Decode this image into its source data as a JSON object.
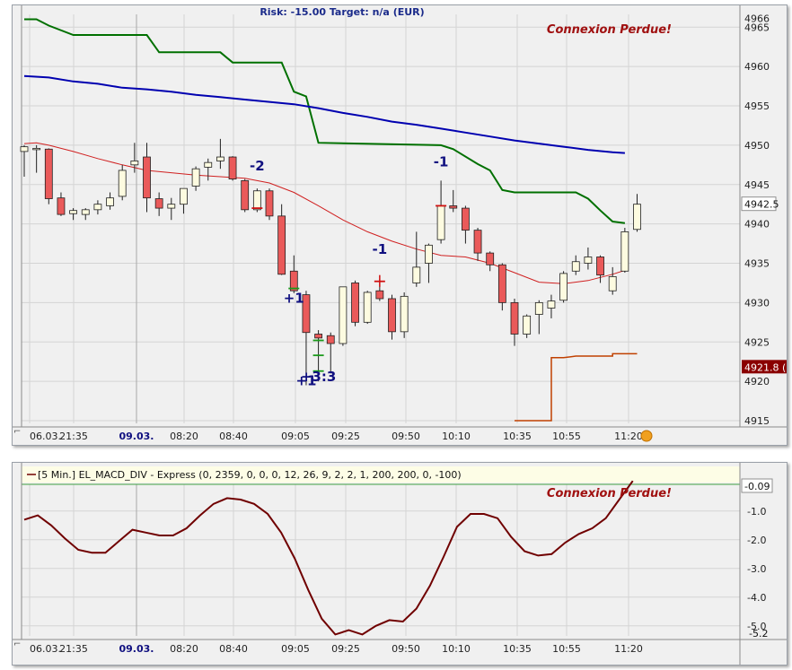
{
  "header": {
    "risk_text": "Risk: -15.00  Target: n/a (EUR)",
    "status_text": "Connexion Perdue!"
  },
  "macd_header": {
    "title": "[5 Min.] EL_MACD_DIV - Express  (0, 2359, 0, 0, 0, 12, 26, 9, 2, 2, 1, 200, 200, 0, -100)",
    "status_text": "Connexion Perdue!"
  },
  "colors": {
    "bull_candle": "#fdfbe0",
    "bear_candle": "#ea5a5a",
    "upper_band": "#007000",
    "blue_ma": "#0000b0",
    "red_ma": "#d02020",
    "orange_line": "#c04000",
    "macd_line": "#700000",
    "annotation": "#101080",
    "status_text": "#a01010"
  },
  "chart_data": [
    {
      "type": "candlestick",
      "title": "",
      "y_ticks": [
        4915,
        4920,
        4925,
        4930,
        4935,
        4940,
        4945,
        4950,
        4955,
        4960,
        4965,
        4966
      ],
      "ylim": [
        4915,
        4966
      ],
      "x_labels": [
        "06.03.",
        "21:35",
        "09.03.",
        "08:20",
        "08:40",
        "09:05",
        "09:25",
        "09:50",
        "10:10",
        "10:35",
        "10:55",
        "11:20"
      ],
      "x_labels_bold": [
        "09.03."
      ],
      "price_label": "4942.5",
      "orange_label": "4921.8 (1",
      "candles": [
        {
          "o": 4949.2,
          "h": 4950.0,
          "l": 4946.0,
          "c": 4949.8
        },
        {
          "o": 4949.5,
          "h": 4950.0,
          "l": 4946.5,
          "c": 4949.6
        },
        {
          "o": 4949.5,
          "h": 4949.6,
          "l": 4942.5,
          "c": 4943.2
        },
        {
          "o": 4943.3,
          "h": 4944.0,
          "l": 4941.0,
          "c": 4941.2
        },
        {
          "o": 4941.3,
          "h": 4942.0,
          "l": 4940.5,
          "c": 4941.7
        },
        {
          "o": 4941.2,
          "h": 4942.0,
          "l": 4940.5,
          "c": 4941.8
        },
        {
          "o": 4941.8,
          "h": 4943.0,
          "l": 4941.2,
          "c": 4942.5
        },
        {
          "o": 4942.3,
          "h": 4944.0,
          "l": 4941.8,
          "c": 4943.3
        },
        {
          "o": 4943.5,
          "h": 4947.5,
          "l": 4943.0,
          "c": 4946.8
        },
        {
          "o": 4947.5,
          "h": 4950.3,
          "l": 4946.5,
          "c": 4948.0
        },
        {
          "o": 4948.5,
          "h": 4950.3,
          "l": 4941.5,
          "c": 4943.3
        },
        {
          "o": 4943.2,
          "h": 4944.0,
          "l": 4941.0,
          "c": 4942.0
        },
        {
          "o": 4942.0,
          "h": 4943.3,
          "l": 4940.5,
          "c": 4942.5
        },
        {
          "o": 4942.5,
          "h": 4944.5,
          "l": 4941.3,
          "c": 4944.5
        },
        {
          "o": 4944.8,
          "h": 4947.3,
          "l": 4944.2,
          "c": 4947.0
        },
        {
          "o": 4947.2,
          "h": 4948.3,
          "l": 4945.5,
          "c": 4947.8
        },
        {
          "o": 4948.0,
          "h": 4950.8,
          "l": 4947.0,
          "c": 4948.5
        },
        {
          "o": 4948.5,
          "h": 4948.6,
          "l": 4945.5,
          "c": 4945.7
        },
        {
          "o": 4945.5,
          "h": 4945.7,
          "l": 4941.5,
          "c": 4941.8
        },
        {
          "o": 4941.8,
          "h": 4944.5,
          "l": 4941.5,
          "c": 4944.2
        },
        {
          "o": 4944.2,
          "h": 4944.5,
          "l": 4940.5,
          "c": 4941.0
        },
        {
          "o": 4941.0,
          "h": 4942.5,
          "l": 4933.5,
          "c": 4933.6
        },
        {
          "o": 4934.0,
          "h": 4936.0,
          "l": 4931.2,
          "c": 4931.5
        },
        {
          "o": 4931.0,
          "h": 4931.5,
          "l": 4919.5,
          "c": 4926.2
        },
        {
          "o": 4926.0,
          "h": 4926.5,
          "l": 4920.0,
          "c": 4925.5
        },
        {
          "o": 4925.8,
          "h": 4926.2,
          "l": 4921.0,
          "c": 4924.8
        },
        {
          "o": 4924.8,
          "h": 4932.0,
          "l": 4924.5,
          "c": 4932.0
        },
        {
          "o": 4932.5,
          "h": 4932.8,
          "l": 4927.0,
          "c": 4927.5
        },
        {
          "o": 4927.5,
          "h": 4931.5,
          "l": 4927.3,
          "c": 4931.3
        },
        {
          "o": 4931.5,
          "h": 4933.0,
          "l": 4930.2,
          "c": 4930.5
        },
        {
          "o": 4930.5,
          "h": 4931.0,
          "l": 4925.3,
          "c": 4926.3
        },
        {
          "o": 4926.3,
          "h": 4931.3,
          "l": 4925.5,
          "c": 4930.8
        },
        {
          "o": 4932.5,
          "h": 4939.0,
          "l": 4932.0,
          "c": 4934.5
        },
        {
          "o": 4935.0,
          "h": 4937.5,
          "l": 4932.5,
          "c": 4937.3
        },
        {
          "o": 4938.0,
          "h": 4945.5,
          "l": 4937.5,
          "c": 4942.3
        },
        {
          "o": 4942.3,
          "h": 4944.3,
          "l": 4941.5,
          "c": 4942.0
        },
        {
          "o": 4942.0,
          "h": 4942.3,
          "l": 4937.5,
          "c": 4939.2
        },
        {
          "o": 4939.2,
          "h": 4939.5,
          "l": 4935.3,
          "c": 4936.3
        },
        {
          "o": 4936.3,
          "h": 4936.5,
          "l": 4934.0,
          "c": 4934.8
        },
        {
          "o": 4934.8,
          "h": 4935.0,
          "l": 4929.0,
          "c": 4930.0
        },
        {
          "o": 4930.0,
          "h": 4930.5,
          "l": 4924.5,
          "c": 4926.0
        },
        {
          "o": 4926.0,
          "h": 4928.5,
          "l": 4925.5,
          "c": 4928.3
        },
        {
          "o": 4928.5,
          "h": 4930.3,
          "l": 4926.0,
          "c": 4930.0
        },
        {
          "o": 4929.3,
          "h": 4931.0,
          "l": 4928.0,
          "c": 4930.2
        },
        {
          "o": 4930.3,
          "h": 4934.0,
          "l": 4930.0,
          "c": 4933.7
        },
        {
          "o": 4934.0,
          "h": 4936.0,
          "l": 4933.5,
          "c": 4935.2
        },
        {
          "o": 4935.0,
          "h": 4937.0,
          "l": 4934.2,
          "c": 4935.8
        },
        {
          "o": 4935.8,
          "h": 4936.0,
          "l": 4932.5,
          "c": 4933.5
        },
        {
          "o": 4931.5,
          "h": 4934.5,
          "l": 4931.0,
          "c": 4933.3
        },
        {
          "o": 4934.0,
          "h": 4939.5,
          "l": 4933.8,
          "c": 4939.0
        },
        {
          "o": 4939.3,
          "h": 4943.8,
          "l": 4939.0,
          "c": 4942.5
        }
      ],
      "upper_band": [
        [
          0,
          4966
        ],
        [
          1,
          4966
        ],
        [
          2,
          4965.2
        ],
        [
          4,
          4964
        ],
        [
          10,
          4964
        ],
        [
          11,
          4961.8
        ],
        [
          16,
          4961.8
        ],
        [
          17,
          4960.5
        ],
        [
          21,
          4960.5
        ],
        [
          22,
          4956.8
        ],
        [
          23,
          4956.2
        ],
        [
          24,
          4950.3
        ],
        [
          34,
          4950.0
        ],
        [
          35,
          4949.5
        ],
        [
          37,
          4947.6
        ],
        [
          38,
          4946.8
        ],
        [
          39,
          4944.3
        ],
        [
          40,
          4944.0
        ],
        [
          45,
          4944.0
        ],
        [
          46,
          4943.2
        ],
        [
          47,
          4941.7
        ],
        [
          48,
          4940.3
        ],
        [
          49,
          4940.1
        ]
      ],
      "blue_ma": [
        [
          0,
          4958.8
        ],
        [
          2,
          4958.6
        ],
        [
          4,
          4958.1
        ],
        [
          6,
          4957.8
        ],
        [
          8,
          4957.3
        ],
        [
          10,
          4957.1
        ],
        [
          12,
          4956.8
        ],
        [
          14,
          4956.4
        ],
        [
          16,
          4956.1
        ],
        [
          18,
          4955.8
        ],
        [
          20,
          4955.5
        ],
        [
          22,
          4955.2
        ],
        [
          24,
          4954.7
        ],
        [
          26,
          4954.1
        ],
        [
          28,
          4953.6
        ],
        [
          30,
          4953.0
        ],
        [
          32,
          4952.6
        ],
        [
          34,
          4952.1
        ],
        [
          36,
          4951.6
        ],
        [
          38,
          4951.1
        ],
        [
          40,
          4950.6
        ],
        [
          42,
          4950.2
        ],
        [
          44,
          4949.8
        ],
        [
          46,
          4949.4
        ],
        [
          48,
          4949.1
        ],
        [
          49,
          4949.0
        ]
      ],
      "red_ma": [
        [
          0,
          4950.2
        ],
        [
          1,
          4950.3
        ],
        [
          2,
          4950.0
        ],
        [
          4,
          4949.2
        ],
        [
          6,
          4948.3
        ],
        [
          8,
          4947.5
        ],
        [
          10,
          4946.8
        ],
        [
          12,
          4946.5
        ],
        [
          14,
          4946.2
        ],
        [
          16,
          4946.0
        ],
        [
          18,
          4945.8
        ],
        [
          20,
          4945.2
        ],
        [
          22,
          4944.0
        ],
        [
          24,
          4942.3
        ],
        [
          26,
          4940.5
        ],
        [
          28,
          4939.0
        ],
        [
          30,
          4937.8
        ],
        [
          32,
          4936.8
        ],
        [
          34,
          4936.0
        ],
        [
          36,
          4935.8
        ],
        [
          38,
          4935.0
        ],
        [
          40,
          4933.8
        ],
        [
          42,
          4932.6
        ],
        [
          44,
          4932.4
        ],
        [
          46,
          4932.8
        ],
        [
          48,
          4933.6
        ],
        [
          49,
          4934.1
        ]
      ],
      "orange_line": [
        [
          40,
          4915.0
        ],
        [
          43,
          4915.0
        ],
        [
          43,
          4923.0
        ],
        [
          44,
          4923.0
        ],
        [
          45,
          4923.2
        ],
        [
          48,
          4923.2
        ],
        [
          48,
          4923.5
        ],
        [
          49,
          4923.5
        ],
        [
          50,
          4923.5
        ]
      ],
      "annotations": [
        {
          "text": "-2",
          "i": 19,
          "y": 4946.8
        },
        {
          "text": "-1",
          "i": 34,
          "y": 4947.3
        },
        {
          "text": "-1",
          "i": 29,
          "y": 4936.2
        },
        {
          "text": "+1",
          "i": 22,
          "y": 4930.0
        },
        {
          "text": "+1",
          "i": 23,
          "y": 4919.5
        },
        {
          "text": "+3:3",
          "i": 24,
          "y": 4920.0
        }
      ]
    },
    {
      "type": "line",
      "title": "",
      "y_ticks": [
        1.0,
        2.0,
        3.0,
        4.0,
        5.0
      ],
      "y_tick_labels": [
        "-1.0",
        "-2.0",
        "-3.0",
        "-4.0",
        "-5.0"
      ],
      "ylim": [
        0.1,
        5.5
      ],
      "x_labels": [
        "06.03.",
        "21:35",
        "09.03.",
        "08:20",
        "08:40",
        "09:05",
        "09:25",
        "09:50",
        "10:10",
        "10:35",
        "10:55",
        "11:20"
      ],
      "value_label": "-0.09",
      "min_label": "-5.2",
      "series": [
        {
          "name": "",
          "values": [
            -1.3,
            -1.15,
            -1.5,
            -1.95,
            -2.35,
            -2.45,
            -2.45,
            -2.05,
            -1.65,
            -1.75,
            -1.85,
            -1.85,
            -1.6,
            -1.15,
            -0.75,
            -0.55,
            -0.6,
            -0.75,
            -1.1,
            -1.75,
            -2.65,
            -3.75,
            -4.75,
            -5.3,
            -5.15,
            -5.3,
            -5.0,
            -4.8,
            -4.85,
            -4.4,
            -3.6,
            -2.6,
            -1.55,
            -1.1,
            -1.1,
            -1.25,
            -1.9,
            -2.4,
            -2.55,
            -2.5,
            -2.1,
            -1.8,
            -1.6,
            -1.25,
            -0.6,
            0.05
          ]
        }
      ]
    }
  ]
}
